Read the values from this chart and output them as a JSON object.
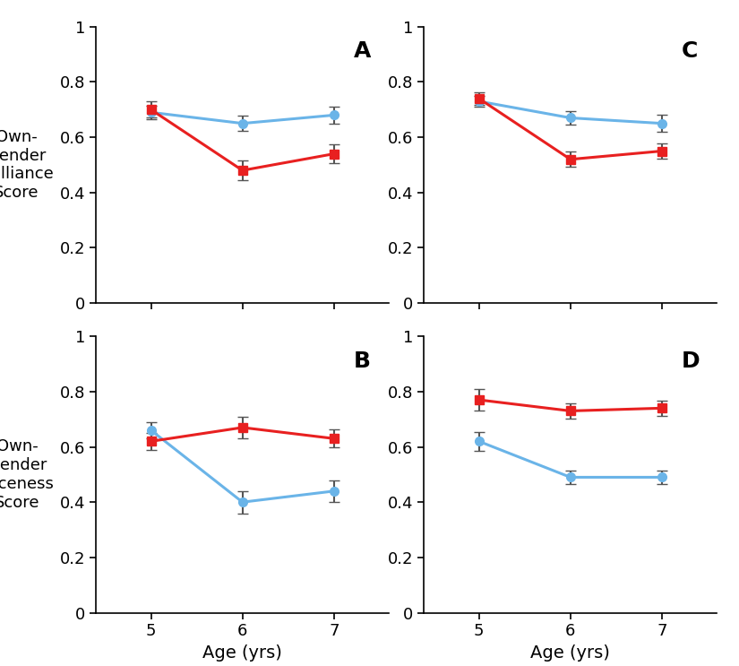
{
  "ages": [
    5,
    6,
    7
  ],
  "panels": {
    "A": {
      "label": "A",
      "blue_y": [
        0.69,
        0.65,
        0.68
      ],
      "red_y": [
        0.7,
        0.48,
        0.54
      ],
      "blue_err": [
        0.025,
        0.028,
        0.03
      ],
      "red_err": [
        0.03,
        0.035,
        0.033
      ]
    },
    "C": {
      "label": "C",
      "blue_y": [
        0.73,
        0.67,
        0.65
      ],
      "red_y": [
        0.74,
        0.52,
        0.55
      ],
      "blue_err": [
        0.02,
        0.025,
        0.03
      ],
      "red_err": [
        0.022,
        0.028,
        0.028
      ]
    },
    "B": {
      "label": "B",
      "blue_y": [
        0.66,
        0.4,
        0.44
      ],
      "red_y": [
        0.62,
        0.67,
        0.63
      ],
      "blue_err": [
        0.028,
        0.04,
        0.04
      ],
      "red_err": [
        0.03,
        0.038,
        0.032
      ]
    },
    "D": {
      "label": "D",
      "blue_y": [
        0.62,
        0.49,
        0.49
      ],
      "red_y": [
        0.77,
        0.73,
        0.74
      ],
      "blue_err": [
        0.035,
        0.025,
        0.025
      ],
      "red_err": [
        0.04,
        0.028,
        0.028
      ]
    }
  },
  "ylim": [
    0,
    1.0
  ],
  "yticks": [
    0,
    0.2,
    0.4,
    0.6,
    0.8,
    1.0
  ],
  "xticks": [
    5,
    6,
    7
  ],
  "xlabel": "Age (yrs)",
  "ylabel_top": "Own-\nGender\nBrilliance\nScore",
  "ylabel_bottom": "Own-\nGender\nNiceness\nScore",
  "blue_color": "#6ab4e8",
  "red_color": "#e82020",
  "marker_size": 7,
  "line_width": 2.2,
  "capsize": 4,
  "ecolor": "#555555",
  "elinewidth": 1.5,
  "background_color": "#ffffff"
}
